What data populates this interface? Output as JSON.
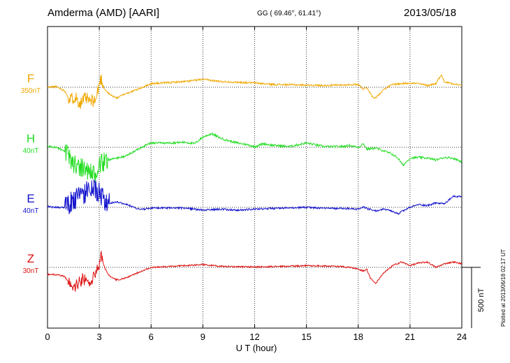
{
  "header": {
    "station": "Amderma (AMD)  [AARI]",
    "coords": "GG ( 69.46°,  61.41°)",
    "date": "2013/05/18"
  },
  "plotted_note": "Plotted at 2013/06/18 02:17 UT",
  "chart_data": {
    "type": "line",
    "xlabel": "U T (hour)",
    "xlim": [
      0,
      24
    ],
    "xticks": [
      0,
      3,
      6,
      9,
      12,
      15,
      18,
      21,
      24
    ],
    "xtick_labels": [
      "0",
      "3",
      "6",
      "9",
      "12",
      "15",
      "18",
      "21",
      "24"
    ],
    "scale_bar_label": "500 nT",
    "colors": {
      "F": "#f0a800",
      "H": "#22dd22",
      "E": "#1010cc",
      "Z": "#dd1010",
      "grid": "#333333"
    },
    "series": [
      {
        "name": "F",
        "scale": "350nT",
        "color": "#f0a800",
        "baseline_row": 1,
        "x": [
          0,
          0.5,
          1,
          1.3,
          1.6,
          1.9,
          2.2,
          2.5,
          2.8,
          3.0,
          3.1,
          3.3,
          3.6,
          4.0,
          4.5,
          5.0,
          5.5,
          6,
          7,
          8,
          9,
          10,
          11,
          12,
          13,
          14,
          15,
          16,
          17,
          18,
          18.3,
          18.5,
          18.8,
          19,
          19.5,
          20,
          21,
          21.5,
          22,
          22.5,
          22.8,
          23,
          23.5,
          24
        ],
        "values": [
          0,
          0.02,
          -0.1,
          -0.35,
          -0.25,
          -0.45,
          -0.3,
          -0.4,
          -0.35,
          0.1,
          0.25,
          -0.05,
          -0.2,
          -0.3,
          -0.18,
          -0.1,
          0,
          0.1,
          0.13,
          0.16,
          0.22,
          0.16,
          0.14,
          0.12,
          0.08,
          0.07,
          0.06,
          0.05,
          0.06,
          0.08,
          -0.05,
          0.0,
          -0.25,
          -0.3,
          -0.05,
          0.08,
          0.12,
          0.1,
          0.05,
          0.1,
          0.35,
          0.15,
          0.1,
          0.05
        ]
      },
      {
        "name": "H",
        "scale": "40nT",
        "color": "#22dd22",
        "baseline_row": 2,
        "x": [
          0,
          0.5,
          1,
          1.5,
          2,
          2.5,
          2.8,
          3,
          3.5,
          4,
          4.5,
          5,
          5.5,
          6,
          7,
          8,
          8.5,
          9,
          9.5,
          10,
          10.5,
          11,
          11.5,
          12,
          12.5,
          13,
          14,
          15,
          16,
          17,
          17.5,
          18,
          18.3,
          18.5,
          19,
          19.5,
          20,
          20.3,
          20.6,
          21,
          21.5,
          22,
          22.5,
          23,
          23.5,
          24
        ],
        "values": [
          0.03,
          0.0,
          -0.12,
          -0.45,
          -0.55,
          -0.7,
          -0.85,
          -0.5,
          -0.35,
          -0.3,
          -0.25,
          -0.12,
          0.02,
          0.12,
          0.12,
          0.14,
          0.1,
          0.28,
          0.38,
          0.26,
          0.18,
          0.12,
          0.08,
          0.02,
          0.1,
          0.06,
          0.02,
          0.12,
          0.02,
          0.02,
          0.05,
          0.0,
          0.1,
          -0.05,
          -0.02,
          -0.1,
          -0.2,
          -0.3,
          -0.5,
          -0.3,
          -0.28,
          -0.3,
          -0.35,
          -0.28,
          -0.3,
          -0.4
        ]
      },
      {
        "name": "E",
        "scale": "40nT",
        "color": "#1010cc",
        "baseline_row": 3,
        "x": [
          0,
          0.5,
          1,
          1.5,
          2,
          2.5,
          3,
          3.3,
          3.6,
          4,
          4.5,
          5,
          5.3,
          5.6,
          6,
          7,
          8,
          9,
          10,
          11,
          12,
          13,
          14,
          15,
          16,
          17,
          18,
          18.3,
          18.6,
          19,
          19.5,
          20,
          20.3,
          20.6,
          21,
          21.5,
          22,
          22.5,
          23,
          23.5,
          24
        ],
        "values": [
          0.02,
          0.0,
          0.0,
          0.2,
          0.35,
          0.5,
          0.45,
          0.15,
          0.12,
          0.15,
          0.1,
          0.0,
          -0.05,
          -0.05,
          -0.02,
          -0.02,
          -0.02,
          -0.08,
          -0.05,
          -0.08,
          -0.05,
          -0.03,
          -0.02,
          0.0,
          -0.03,
          -0.03,
          -0.05,
          0.0,
          -0.05,
          -0.1,
          -0.05,
          -0.12,
          -0.18,
          -0.1,
          0.0,
          0.08,
          0.05,
          0.12,
          0.1,
          0.3,
          0.3
        ]
      },
      {
        "name": "Z",
        "scale": "30nT",
        "color": "#dd1010",
        "baseline_row": 4,
        "x": [
          0,
          0.5,
          1,
          1.2,
          1.5,
          1.8,
          2.1,
          2.4,
          2.7,
          3.0,
          3.1,
          3.3,
          3.6,
          4.0,
          4.5,
          5,
          5.5,
          6,
          7,
          8,
          9,
          10,
          11,
          12,
          13,
          14,
          15,
          16,
          17,
          17.5,
          18,
          18.3,
          18.5,
          18.7,
          19,
          19.5,
          20,
          20.5,
          21,
          21.5,
          22,
          22.5,
          23,
          23.5,
          24
        ],
        "values": [
          -0.2,
          -0.2,
          -0.25,
          -0.4,
          -0.55,
          -0.45,
          -0.3,
          -0.5,
          -0.25,
          0.1,
          0.4,
          0.0,
          -0.25,
          -0.35,
          -0.3,
          -0.2,
          -0.1,
          0.0,
          0.02,
          0.05,
          0.08,
          0.03,
          0.02,
          0.01,
          0.02,
          0.03,
          0.05,
          0.04,
          0.02,
          0.0,
          -0.05,
          -0.1,
          -0.05,
          -0.3,
          -0.45,
          -0.15,
          0.05,
          0.15,
          0.05,
          0.12,
          0.15,
          0.0,
          0.1,
          0.15,
          0.1
        ]
      }
    ]
  }
}
